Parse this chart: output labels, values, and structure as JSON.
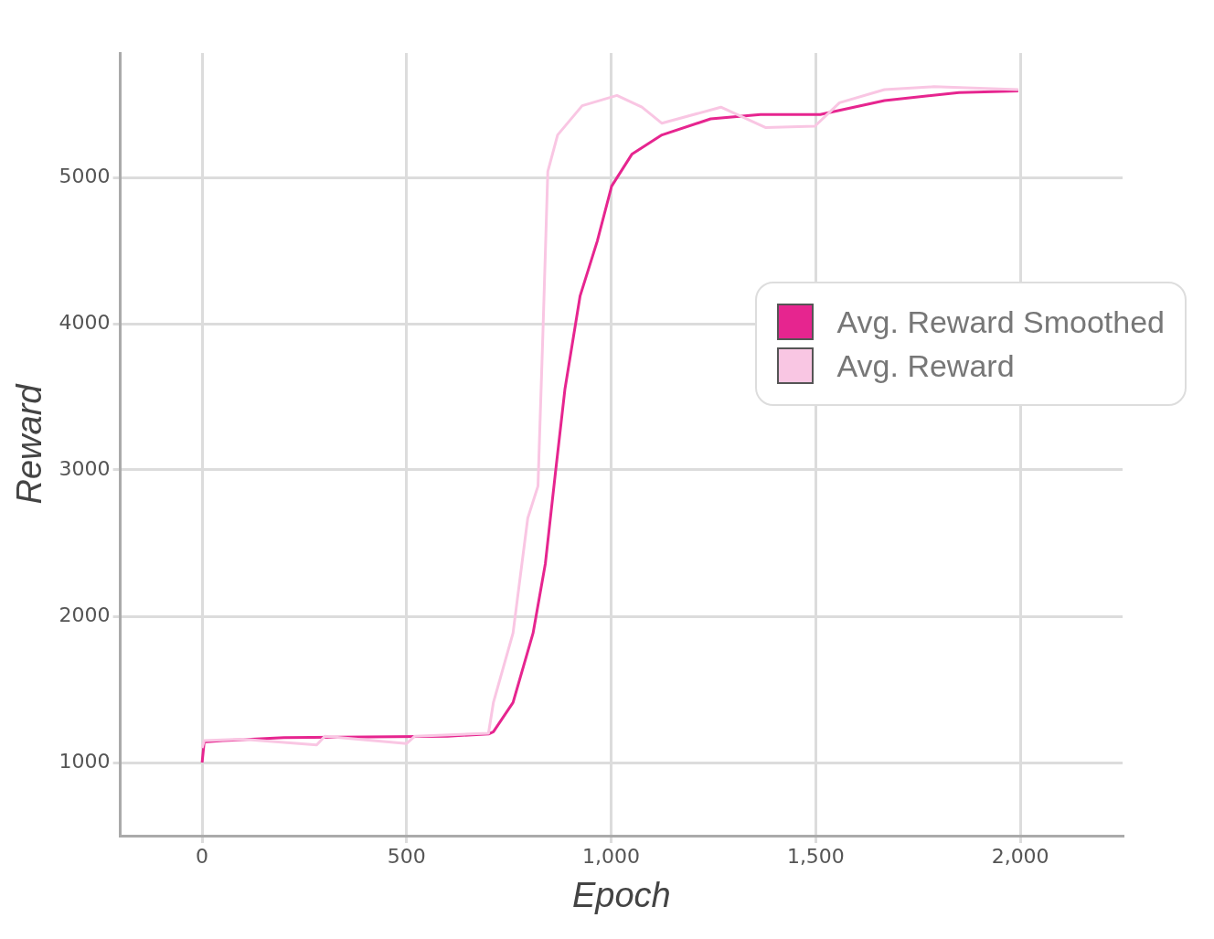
{
  "chart_data": {
    "type": "line",
    "xlabel": "Epoch",
    "ylabel": "Reward",
    "xlim": [
      -200,
      2250
    ],
    "ylim": [
      500,
      5850
    ],
    "xticks": [
      0,
      {
        "value": 500,
        "label": "500"
      },
      {
        "value": 1000,
        "label": "1,000"
      },
      {
        "value": 1500,
        "label": "1,500"
      },
      {
        "value": 2000,
        "label": "2,000"
      }
    ],
    "yticks": [
      1000,
      2000,
      3000,
      4000,
      5000
    ],
    "grid": true,
    "legend": "right",
    "marker": "none",
    "line_style": "solid",
    "series": [
      {
        "name": "Avg. Reward Smoothed",
        "color": "#e6258f",
        "x": [
          0,
          5,
          50,
          200,
          400,
          600,
          700,
          712,
          760,
          809,
          839,
          864,
          887,
          924,
          966,
          1001,
          1051,
          1124,
          1243,
          1365,
          1511,
          1668,
          1850,
          1995
        ],
        "values": [
          1000,
          1140,
          1150,
          1170,
          1175,
          1180,
          1195,
          1210,
          1410,
          1885,
          2360,
          2990,
          3555,
          4190,
          4565,
          4940,
          5160,
          5290,
          5400,
          5430,
          5430,
          5525,
          5580,
          5590
        ]
      },
      {
        "name": "Avg. Reward",
        "color": "#f9c6e3",
        "x": [
          0,
          5,
          100,
          280,
          300,
          500,
          520,
          700,
          712,
          760,
          796,
          821,
          833,
          845,
          869,
          929,
          1014,
          1075,
          1124,
          1268,
          1378,
          1498,
          1558,
          1668,
          1789,
          1995
        ],
        "values": [
          1100,
          1150,
          1160,
          1120,
          1180,
          1130,
          1180,
          1200,
          1410,
          1885,
          2670,
          2890,
          3930,
          5040,
          5290,
          5490,
          5560,
          5480,
          5370,
          5480,
          5340,
          5350,
          5510,
          5600,
          5620,
          5600
        ]
      }
    ]
  }
}
